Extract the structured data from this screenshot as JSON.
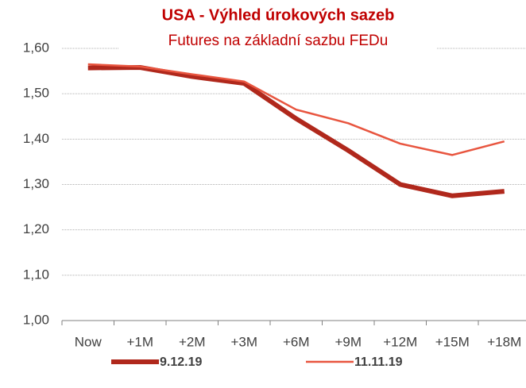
{
  "chart_data": {
    "type": "line",
    "title": "USA - Výhled úrokových sazeb",
    "subtitle": "Futures na základní sazbu FEDu",
    "categories": [
      "Now",
      "+1M",
      "+2M",
      "+3M",
      "+6M",
      "+9M",
      "+12M",
      "+15M",
      "+18M"
    ],
    "series": [
      {
        "name": "9.12.19",
        "color": "#b0281c",
        "values": [
          1.557,
          1.558,
          1.538,
          1.523,
          1.445,
          1.375,
          1.3,
          1.275,
          1.285
        ]
      },
      {
        "name": "11.11.19",
        "color": "#e8553f",
        "values": [
          1.565,
          1.56,
          1.543,
          1.527,
          1.465,
          1.435,
          1.39,
          1.365,
          1.395
        ]
      }
    ],
    "ylim": [
      1.0,
      1.6
    ],
    "yticks": [
      {
        "value": 1.0,
        "label": "1,00"
      },
      {
        "value": 1.1,
        "label": "1,10"
      },
      {
        "value": 1.2,
        "label": "1,20"
      },
      {
        "value": 1.3,
        "label": "1,30"
      },
      {
        "value": 1.4,
        "label": "1,40"
      },
      {
        "value": 1.5,
        "label": "1,50"
      },
      {
        "value": 1.6,
        "label": "1,60"
      }
    ],
    "grid": true
  }
}
